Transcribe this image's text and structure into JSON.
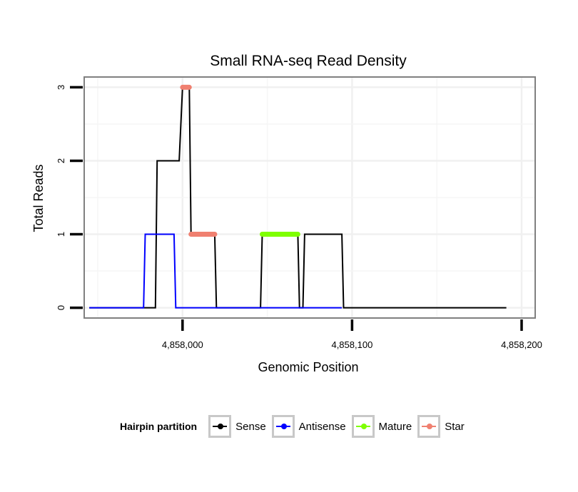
{
  "chart_data": {
    "type": "line",
    "title": "Small RNA-seq Read Density",
    "xlabel": "Genomic Position",
    "ylabel": "Total Reads",
    "xlim": [
      4857942,
      4858208
    ],
    "ylim": [
      -0.14,
      3.14
    ],
    "x_ticks": [
      4858000,
      4858100,
      4858200
    ],
    "x_tick_labels": [
      "4,858,000",
      "4,858,100",
      "4,858,200"
    ],
    "y_ticks": [
      0,
      1,
      2,
      3
    ],
    "y_tick_labels": [
      "0",
      "1",
      "2",
      "3"
    ],
    "grid": true,
    "legend_position": "bottom",
    "legend_title": "Hairpin partition",
    "series": [
      {
        "name": "Sense",
        "color": "#000000",
        "kind": "step",
        "x": [
          4857945,
          4857984,
          4857985,
          4857998,
          4858000,
          4858004,
          4858005,
          4858019,
          4858020,
          4858046,
          4858047,
          4858068,
          4858069,
          4858071,
          4858072,
          4858094,
          4858095,
          4858191
        ],
        "y": [
          0,
          0,
          2,
          2,
          3,
          3,
          1,
          1,
          0,
          0,
          1,
          1,
          0,
          0,
          1,
          1,
          0,
          0
        ]
      },
      {
        "name": "Antisense",
        "color": "#0000ff",
        "kind": "step",
        "x": [
          4857945,
          4857977,
          4857978,
          4857995,
          4857996,
          4858094
        ],
        "y": [
          0,
          0,
          1,
          1,
          0,
          0
        ]
      },
      {
        "name": "Mature",
        "color": "#7fff00",
        "kind": "segment",
        "x": [
          4858047,
          4858068
        ],
        "y": [
          1,
          1
        ]
      },
      {
        "name": "Star",
        "color": "#f08070",
        "kind": "segments",
        "segments": [
          {
            "x": [
              4858000,
              4858004
            ],
            "y": [
              3,
              3
            ]
          },
          {
            "x": [
              4858005,
              4858019
            ],
            "y": [
              1,
              1
            ]
          }
        ]
      }
    ]
  }
}
